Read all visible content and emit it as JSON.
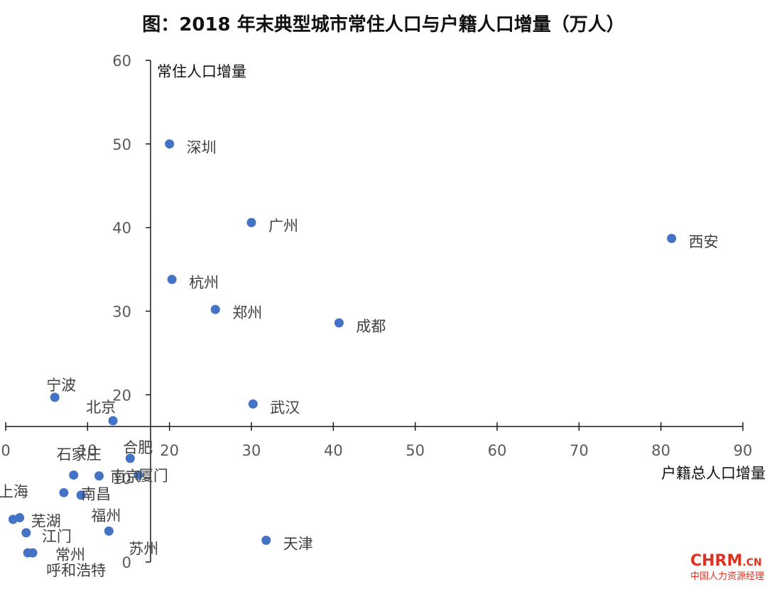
{
  "chart_data": {
    "type": "scatter",
    "title": "图：2018 年末典型城市常住人口与户籍人口增量（万人）",
    "xlabel": "户籍总人口增量",
    "ylabel": "常住人口增量",
    "xlim": [
      0,
      90
    ],
    "ylim": [
      0,
      60
    ],
    "x_ticks": [
      "0",
      "10",
      "20",
      "30",
      "40",
      "50",
      "60",
      "70",
      "80",
      "90"
    ],
    "y_ticks": [
      "0",
      "10",
      "20",
      "30",
      "40",
      "50",
      "60"
    ],
    "points": [
      {
        "name": "深圳",
        "x": 20,
        "y": 50
      },
      {
        "name": "广州",
        "x": 30,
        "y": 40.6
      },
      {
        "name": "西安",
        "x": 81.3,
        "y": 38.7
      },
      {
        "name": "杭州",
        "x": 20.3,
        "y": 33.8
      },
      {
        "name": "郑州",
        "x": 25.6,
        "y": 30.2
      },
      {
        "name": "成都",
        "x": 40.7,
        "y": 28.6
      },
      {
        "name": "宁波",
        "x": 6,
        "y": 19.7
      },
      {
        "name": "武汉",
        "x": 30.2,
        "y": 18.9
      },
      {
        "name": "北京",
        "x": 13.1,
        "y": 16.9
      },
      {
        "name": "合肥",
        "x": 15.2,
        "y": 12.4
      },
      {
        "name": "石家庄",
        "x": 8.3,
        "y": 10.4
      },
      {
        "name": "厦门",
        "x": 16.2,
        "y": 10.4
      },
      {
        "name": "南京",
        "x": 11.4,
        "y": 10.3
      },
      {
        "name": "上海",
        "x": 7.1,
        "y": 8.3
      },
      {
        "name": "南昌",
        "x": 9.2,
        "y": 8.0
      },
      {
        "name": "芜湖",
        "x": 1.7,
        "y": 5.3
      },
      {
        "name": "福州",
        "x": 0.9,
        "y": 5.1
      },
      {
        "name": "江门",
        "x": 2.5,
        "y": 3.5
      },
      {
        "name": "苏州",
        "x": 12.6,
        "y": 3.7
      },
      {
        "name": "天津",
        "x": 31.8,
        "y": 2.6
      },
      {
        "name": "常州",
        "x": 3.3,
        "y": 1.1
      },
      {
        "name": "呼和浩特",
        "x": 2.7,
        "y": 1.1
      }
    ]
  },
  "watermark": {
    "main": "CHRM",
    "sub": ".CN",
    "cn": "中国人力资源经理"
  }
}
